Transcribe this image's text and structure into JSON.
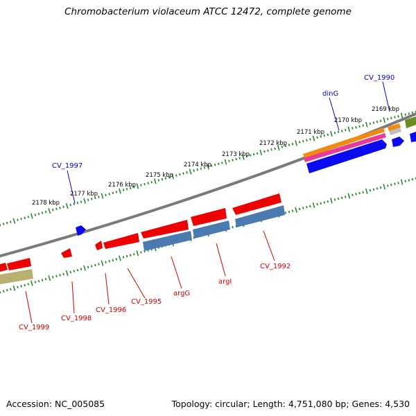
{
  "title": "Chromobacterium violaceum ATCC 12472, complete genome",
  "footer": {
    "accession": "Accession: NC_005085",
    "topology": "Topology: circular; Length: 4,751,080 bp; Genes: 4,530"
  },
  "scale_ticks": [
    "2169 kbp",
    "2170 kbp",
    "2171 kbp",
    "2172 kbp",
    "2173 kbp",
    "2174 kbp",
    "2175 kbp",
    "2176 kbp",
    "2177 kbp",
    "2178 kbp"
  ],
  "gene_labels_top": [
    "CV_1990",
    "dinG",
    "CV_1997"
  ],
  "gene_labels_bottom": [
    "CV_1992",
    "argI",
    "argG",
    "CV_1995",
    "CV_1996",
    "CV_1998",
    "CV_1999"
  ],
  "colors": {
    "forward_label": "#0000cc",
    "reverse_label": "#cc0000",
    "forward_gene": "#0000ee",
    "reverse_gene": "#ee0000",
    "backbone": "#808080",
    "tick": "#2a8a2a",
    "cds_blue": "#4a7ab0",
    "orange": "#ff8c00",
    "pink": "#ee3399",
    "olive": "#6b8e23",
    "khaki": "#b8b070"
  }
}
